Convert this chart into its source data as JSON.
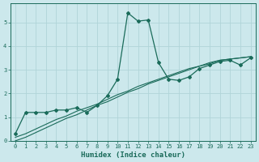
{
  "xlabel": "Humidex (Indice chaleur)",
  "ylabel": "",
  "background_color": "#cce8ec",
  "grid_color": "#b0d4d8",
  "line_color": "#1a6b5a",
  "x_data": [
    0,
    1,
    2,
    3,
    4,
    5,
    6,
    7,
    8,
    9,
    10,
    11,
    12,
    13,
    14,
    15,
    16,
    17,
    18,
    19,
    20,
    21,
    22,
    23
  ],
  "y_main": [
    0.3,
    1.2,
    1.2,
    1.2,
    1.3,
    1.3,
    1.4,
    1.2,
    1.5,
    1.9,
    2.6,
    5.4,
    5.05,
    5.1,
    3.3,
    2.6,
    2.55,
    2.7,
    3.05,
    3.2,
    3.35,
    3.4,
    3.2,
    3.5
  ],
  "y_linear1": [
    0.15,
    0.3,
    0.5,
    0.7,
    0.9,
    1.05,
    1.25,
    1.4,
    1.55,
    1.75,
    1.95,
    2.1,
    2.3,
    2.45,
    2.6,
    2.75,
    2.9,
    3.05,
    3.15,
    3.3,
    3.4,
    3.45,
    3.5,
    3.55
  ],
  "y_linear2": [
    0.0,
    0.15,
    0.35,
    0.55,
    0.75,
    0.95,
    1.1,
    1.3,
    1.5,
    1.65,
    1.85,
    2.05,
    2.2,
    2.4,
    2.55,
    2.7,
    2.85,
    3.0,
    3.15,
    3.25,
    3.4,
    3.45,
    3.5,
    3.55
  ],
  "ylim": [
    0,
    5.8
  ],
  "xlim": [
    -0.5,
    23.5
  ],
  "yticks": [
    0,
    1,
    2,
    3,
    4,
    5
  ],
  "xticks": [
    0,
    1,
    2,
    3,
    4,
    5,
    6,
    7,
    8,
    9,
    10,
    11,
    12,
    13,
    14,
    15,
    16,
    17,
    18,
    19,
    20,
    21,
    22,
    23
  ],
  "title_fontsize": 6.5,
  "label_fontsize": 6.5,
  "tick_fontsize": 5.0
}
